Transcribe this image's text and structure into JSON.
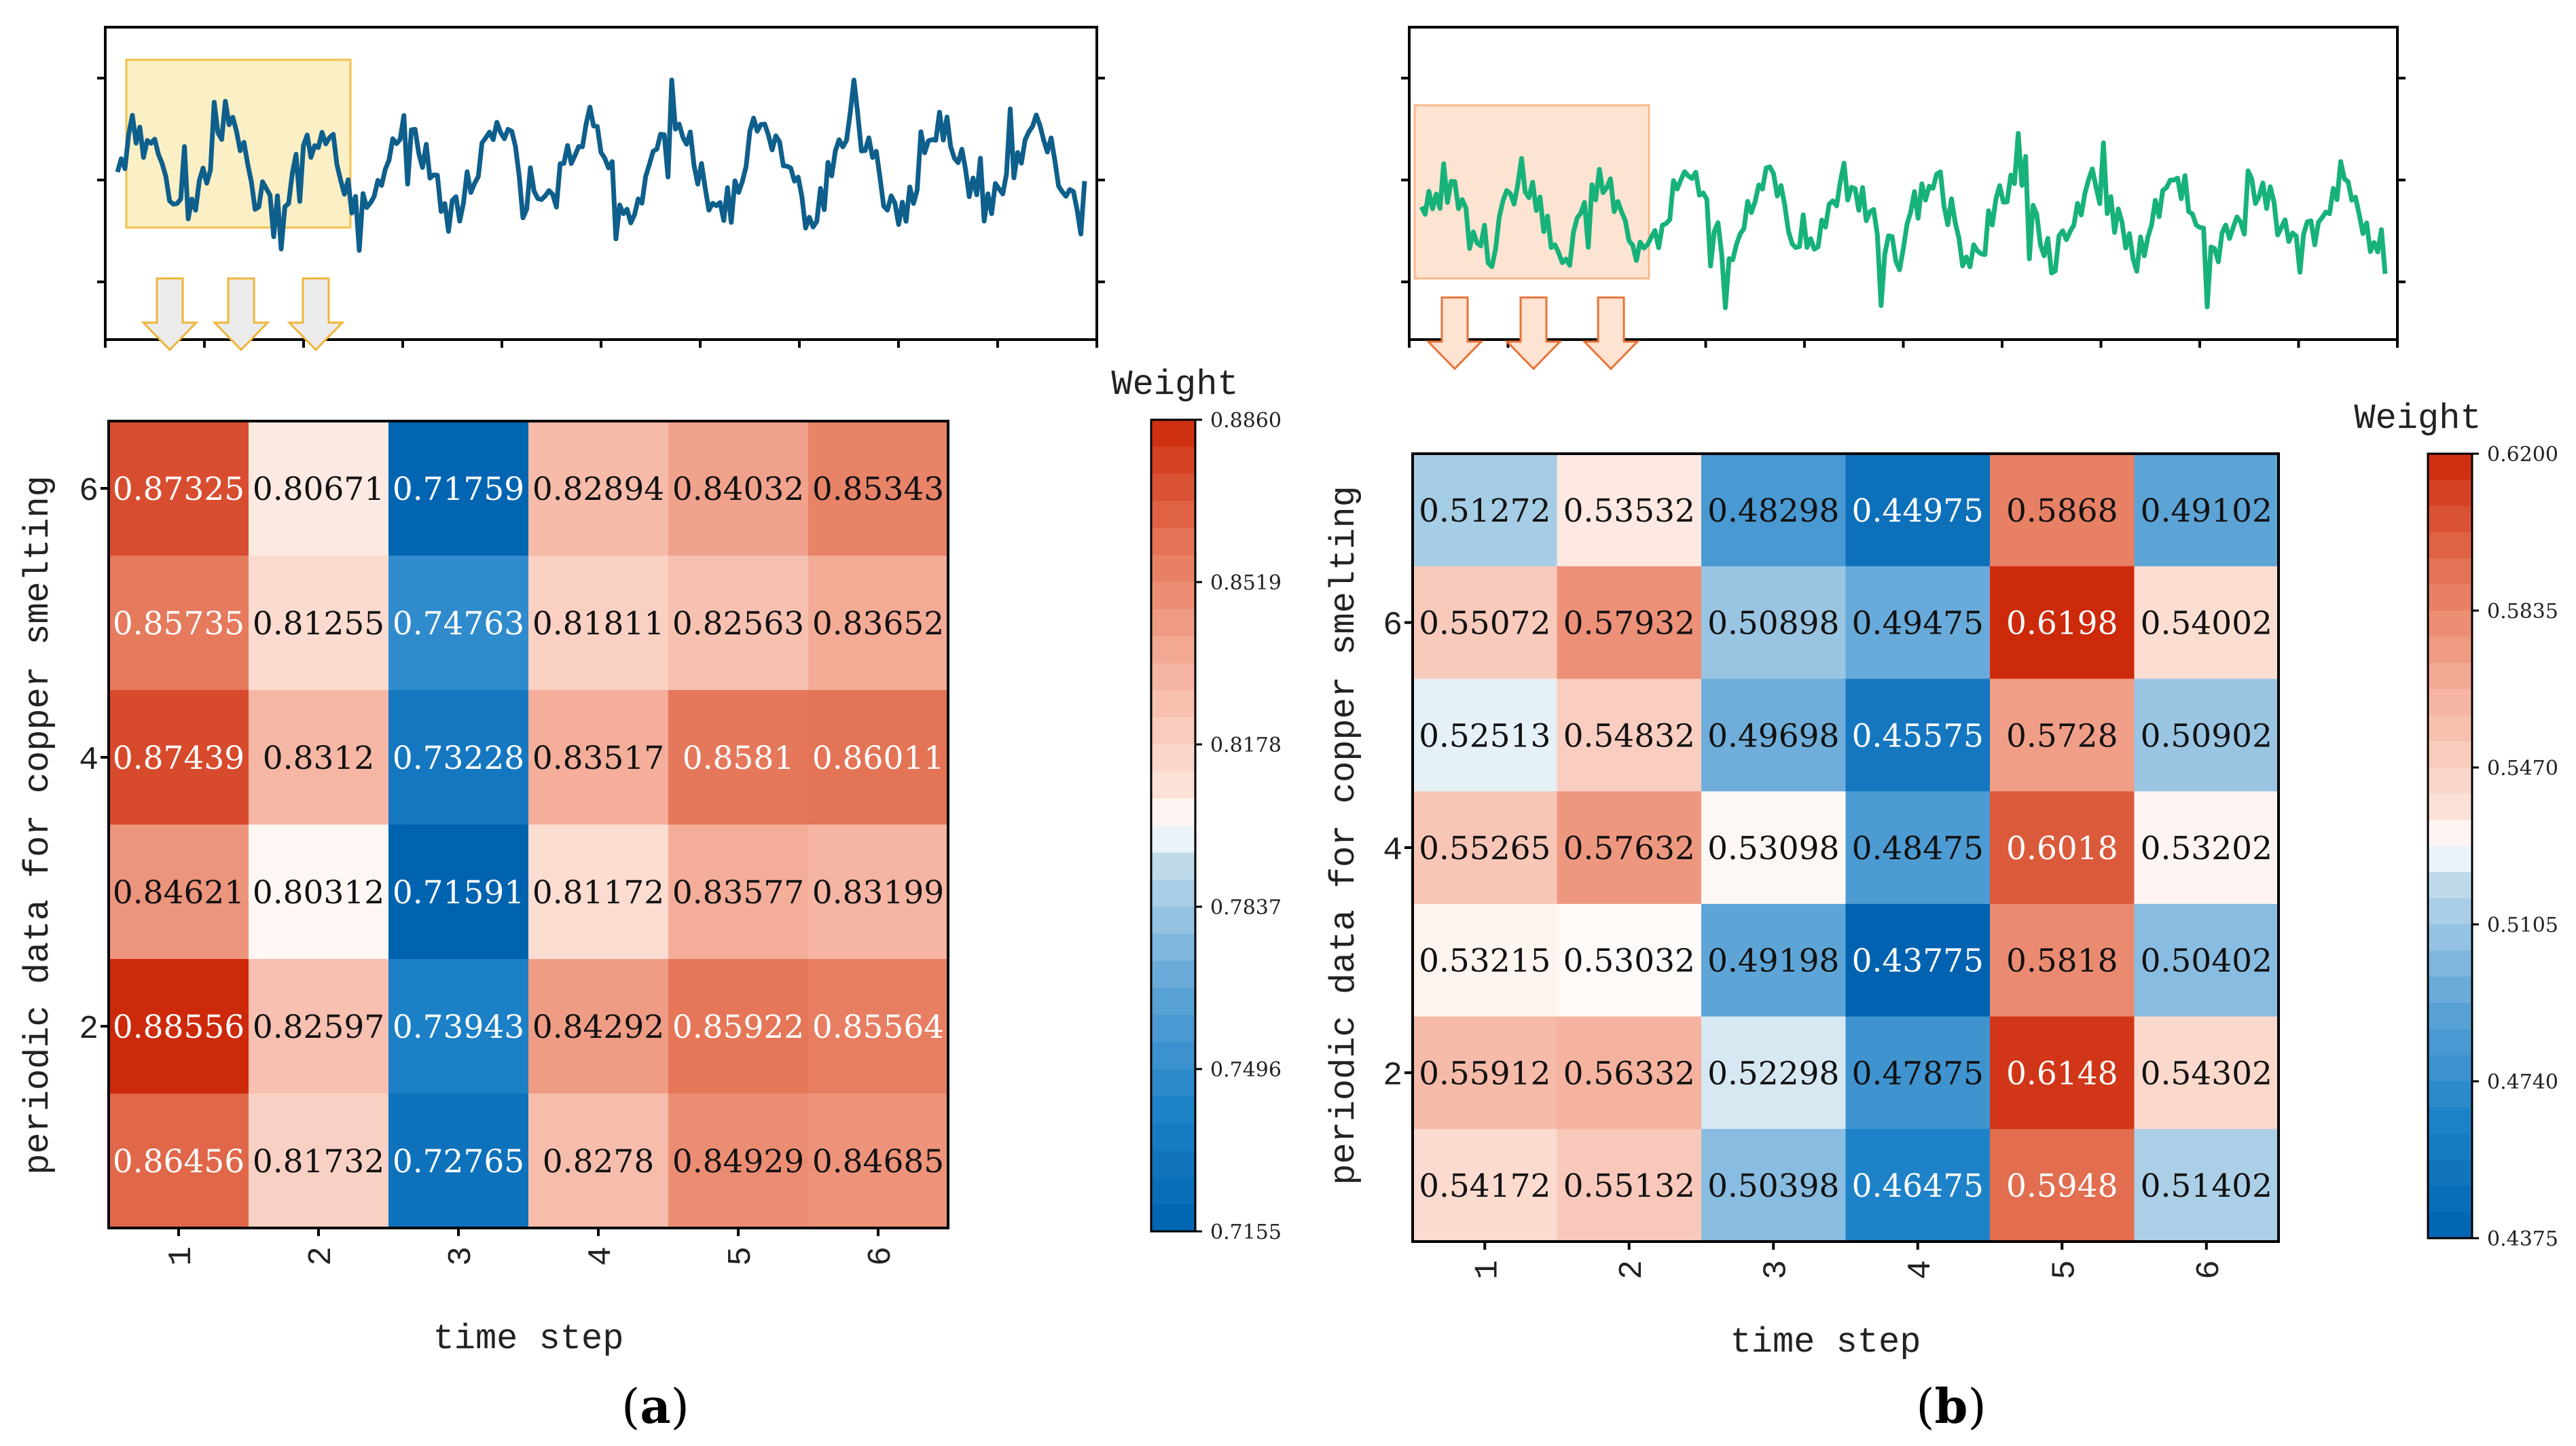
{
  "panels": [
    {
      "id": "a",
      "caption_letter": "a",
      "line_color": "#0e5f8c",
      "highlight_fill": "#fbefc5",
      "highlight_stroke": "#f2c14a",
      "arrow_fill": "#ececec",
      "arrow_stroke": "#f0b43a",
      "heatmap": {
        "type": "heatmap",
        "xlabel": "time step",
        "ylabel": "periodic data for copper smelting",
        "x_ticks": [
          "1",
          "2",
          "3",
          "4",
          "5",
          "6"
        ],
        "y_ticks": [
          "6",
          "4",
          "2"
        ],
        "colorbar_title": "Weight",
        "colorbar_ticks": [
          "0.8860",
          "0.8519",
          "0.8178",
          "0.7837",
          "0.7496",
          "0.7155"
        ],
        "vmin": 0.7155,
        "vmax": 0.886,
        "rows": [
          [
            "0.87325",
            "0.80671",
            "0.71759",
            "0.82894",
            "0.84032",
            "0.85343"
          ],
          [
            "0.85735",
            "0.81255",
            "0.74763",
            "0.81811",
            "0.82563",
            "0.83652"
          ],
          [
            "0.87439",
            "0.8312",
            "0.73228",
            "0.83517",
            "0.8581",
            "0.86011"
          ],
          [
            "0.84621",
            "0.80312",
            "0.71591",
            "0.81172",
            "0.83577",
            "0.83199"
          ],
          [
            "0.88556",
            "0.82597",
            "0.73943",
            "0.84292",
            "0.85922",
            "0.85564"
          ],
          [
            "0.86456",
            "0.81732",
            "0.72765",
            "0.8278",
            "0.84929",
            "0.84685"
          ]
        ]
      }
    },
    {
      "id": "b",
      "caption_letter": "b",
      "line_color": "#17b27a",
      "highlight_fill": "#fde3d2",
      "highlight_stroke": "#f6b98a",
      "arrow_fill": "#fde3d2",
      "arrow_stroke": "#e8733a",
      "heatmap": {
        "type": "heatmap",
        "xlabel": "time step",
        "ylabel": "periodic data for copper smelting",
        "x_ticks": [
          "1",
          "2",
          "3",
          "4",
          "5",
          "6"
        ],
        "y_ticks": [
          "6",
          "4",
          "2"
        ],
        "colorbar_title": "Weight",
        "colorbar_ticks": [
          "0.6200",
          "0.5835",
          "0.5470",
          "0.5105",
          "0.4740",
          "0.4375"
        ],
        "vmin": 0.4375,
        "vmax": 0.62,
        "rows": [
          [
            "0.51272",
            "0.53532",
            "0.48298",
            "0.44975",
            "0.5868",
            "0.49102"
          ],
          [
            "0.55072",
            "0.57932",
            "0.50898",
            "0.49475",
            "0.6198",
            "0.54002"
          ],
          [
            "0.52513",
            "0.54832",
            "0.49698",
            "0.45575",
            "0.5728",
            "0.50902"
          ],
          [
            "0.55265",
            "0.57632",
            "0.53098",
            "0.48475",
            "0.6018",
            "0.53202"
          ],
          [
            "0.53215",
            "0.53032",
            "0.49198",
            "0.43775",
            "0.5818",
            "0.50402"
          ],
          [
            "0.55912",
            "0.56332",
            "0.52298",
            "0.47875",
            "0.6148",
            "0.54302"
          ],
          [
            "0.54172",
            "0.55132",
            "0.50398",
            "0.46475",
            "0.5948",
            "0.51402"
          ]
        ]
      }
    }
  ]
}
